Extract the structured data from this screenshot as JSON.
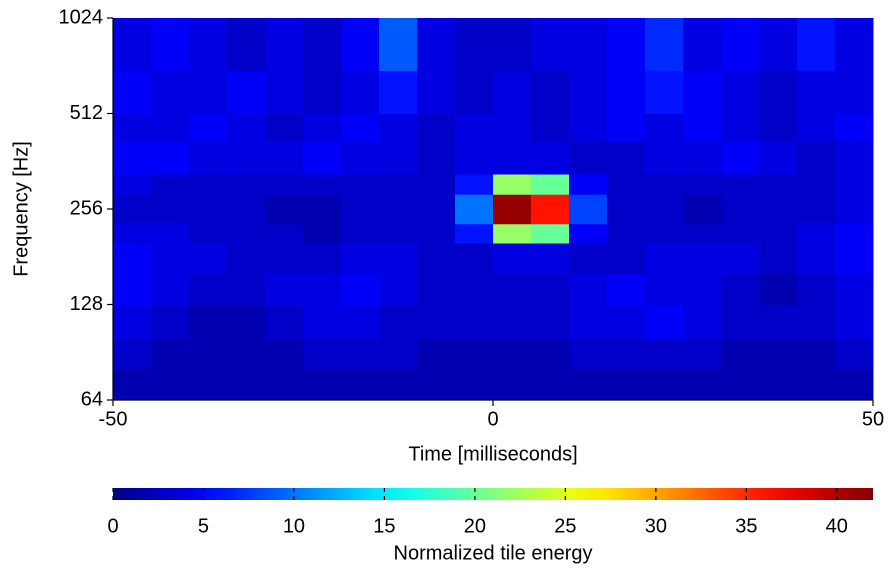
{
  "chart_data": {
    "type": "heatmap",
    "xlabel": "Time [milliseconds]",
    "ylabel": "Frequency [Hz]",
    "colorbar_label": "Normalized tile energy",
    "colormap": "jet",
    "ylog": true,
    "xlim": [
      -50,
      50
    ],
    "xticks": [
      -50,
      0,
      50
    ],
    "ylim": [
      64,
      1024
    ],
    "yticks": [
      64,
      128,
      256,
      512,
      1024
    ],
    "clim": [
      0,
      42
    ],
    "cticks": [
      0,
      5,
      10,
      15,
      20,
      25,
      30,
      35,
      40
    ],
    "x_edges": [
      -50,
      -45,
      -40,
      -35,
      -30,
      -25,
      -20,
      -15,
      -10,
      -5,
      0,
      5,
      10,
      15,
      20,
      25,
      30,
      35,
      40,
      45,
      50
    ],
    "y_edges": [
      64,
      80,
      100,
      128,
      160,
      200,
      230,
      285,
      330,
      420,
      512,
      700,
      1024
    ],
    "values": [
      [
        2,
        2,
        2,
        2,
        2,
        2,
        2,
        2,
        2,
        2,
        2,
        2,
        2,
        2,
        2,
        2,
        2,
        2,
        2,
        2
      ],
      [
        3,
        2,
        2,
        2,
        2,
        3,
        3,
        3,
        2,
        2,
        2,
        2,
        3,
        3,
        3,
        3,
        2,
        2,
        2,
        3
      ],
      [
        4,
        3,
        2,
        2,
        3,
        4,
        4,
        3,
        3,
        3,
        3,
        3,
        4,
        4,
        5,
        4,
        3,
        3,
        3,
        4
      ],
      [
        5,
        4,
        3,
        3,
        4,
        4,
        5,
        4,
        3,
        3,
        3,
        3,
        4,
        5,
        4,
        4,
        3,
        2,
        3,
        4
      ],
      [
        5,
        4,
        4,
        3,
        3,
        3,
        4,
        4,
        3,
        3,
        4,
        4,
        3,
        3,
        4,
        4,
        4,
        3,
        4,
        5
      ],
      [
        4,
        4,
        3,
        3,
        3,
        2,
        3,
        3,
        3,
        6,
        22,
        20,
        5,
        3,
        3,
        3,
        3,
        3,
        4,
        5
      ],
      [
        3,
        3,
        3,
        3,
        2,
        2,
        3,
        3,
        3,
        10,
        41,
        36,
        8,
        3,
        3,
        2,
        3,
        3,
        3,
        4
      ],
      [
        4,
        3,
        3,
        3,
        3,
        3,
        3,
        3,
        3,
        6,
        22,
        20,
        5,
        3,
        3,
        3,
        3,
        3,
        3,
        4
      ],
      [
        5,
        5,
        4,
        4,
        4,
        5,
        4,
        4,
        3,
        4,
        4,
        4,
        3,
        3,
        4,
        4,
        5,
        4,
        3,
        4
      ],
      [
        4,
        4,
        5,
        4,
        3,
        4,
        5,
        4,
        3,
        4,
        4,
        3,
        4,
        5,
        4,
        5,
        4,
        3,
        4,
        5
      ],
      [
        5,
        4,
        4,
        5,
        4,
        3,
        4,
        6,
        4,
        3,
        4,
        3,
        4,
        5,
        6,
        5,
        4,
        3,
        4,
        4
      ],
      [
        4,
        5,
        4,
        3,
        4,
        3,
        5,
        9,
        4,
        3,
        3,
        4,
        4,
        5,
        7,
        4,
        5,
        4,
        6,
        4
      ]
    ]
  }
}
